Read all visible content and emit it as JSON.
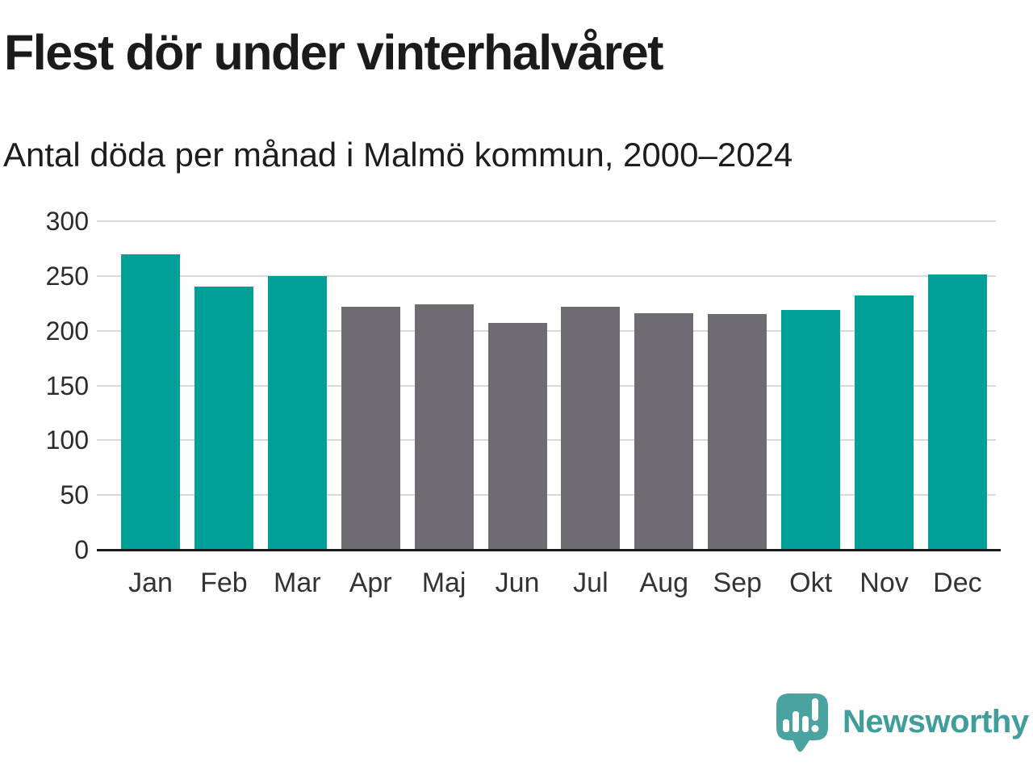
{
  "header": {
    "title": "Flest dör under vinterhalvåret",
    "subtitle": "Antal döda per månad i Malmö kommun, 2000–2024"
  },
  "chart_data": {
    "type": "bar",
    "title": "Flest dör under vinterhalvåret",
    "subtitle": "Antal döda per månad i Malmö kommun, 2000–2024",
    "categories": [
      "Jan",
      "Feb",
      "Mar",
      "Apr",
      "Maj",
      "Jun",
      "Jul",
      "Aug",
      "Sep",
      "Okt",
      "Nov",
      "Dec"
    ],
    "values": [
      270,
      240,
      250,
      222,
      224,
      207,
      222,
      216,
      215,
      219,
      232,
      251
    ],
    "bar_colors": [
      "#00a099",
      "#00a099",
      "#00a099",
      "#6e6c72",
      "#6e6c72",
      "#6e6c72",
      "#6e6c72",
      "#6e6c72",
      "#6e6c72",
      "#00a099",
      "#00a099",
      "#00a099"
    ],
    "highlighted_categories": [
      "Jan",
      "Feb",
      "Mar",
      "Okt",
      "Nov",
      "Dec"
    ],
    "xlabel": "",
    "ylabel": "",
    "ylim": [
      0,
      300
    ],
    "yticks": [
      0,
      50,
      100,
      150,
      200,
      250,
      300
    ],
    "grid": true,
    "legend": false,
    "colors": {
      "highlight": "#00a099",
      "base": "#6e6c72",
      "gridline": "#d9d9d9",
      "axis": "#1a1a1a"
    }
  },
  "footer": {
    "logo_text": "Newsworthy",
    "logo_text_color": "#3f9e9b",
    "logo_bubble_color": "#4aa3a0"
  }
}
